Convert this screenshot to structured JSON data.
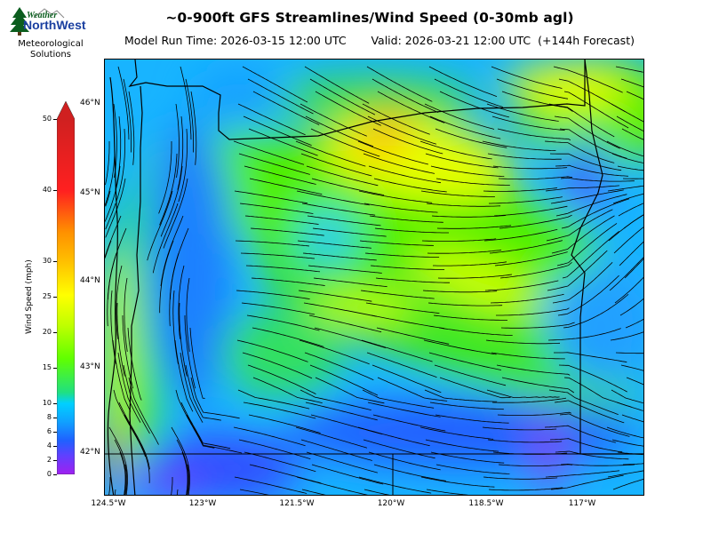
{
  "title": "~0-900ft GFS Streamlines/Wind Speed (0-30mb agl)",
  "subtitle": {
    "model_run": "Model Run Time: 2026-03-15 12:00 UTC",
    "valid": "Valid: 2026-03-21 12:00 UTC  (+144h Forecast)"
  },
  "logo": {
    "word1": "Weather",
    "word2": "NorthWest",
    "org_line1": "Meteorological",
    "org_line2": "Solutions",
    "icon": "tree-mountain-logo"
  },
  "colorbar": {
    "label": "Wind Speed (mph)",
    "ticks": [
      "0",
      "2",
      "4",
      "6",
      "8",
      "10",
      "15",
      "20",
      "25",
      "30",
      "40",
      "50"
    ],
    "units": "mph",
    "max_extend": "triangle-above-50",
    "colors": [
      "#a020f0",
      "#6040ff",
      "#2060ff",
      "#10a0ff",
      "#00d0ff",
      "#00ff60",
      "#60ff00",
      "#ffff00",
      "#ffc000",
      "#ff8000",
      "#ff2020",
      "#d02020"
    ]
  },
  "map": {
    "lat_labels": [
      "46°N",
      "45°N",
      "44°N",
      "43°N",
      "42°N"
    ],
    "lon_labels": [
      "124.5°W",
      "123°W",
      "121.5°W",
      "120°W",
      "118.5°W",
      "117°W"
    ],
    "region": "Oregon",
    "features": [
      "coastline",
      "state-borders",
      "streamlines",
      "wind-speed-shading"
    ]
  }
}
